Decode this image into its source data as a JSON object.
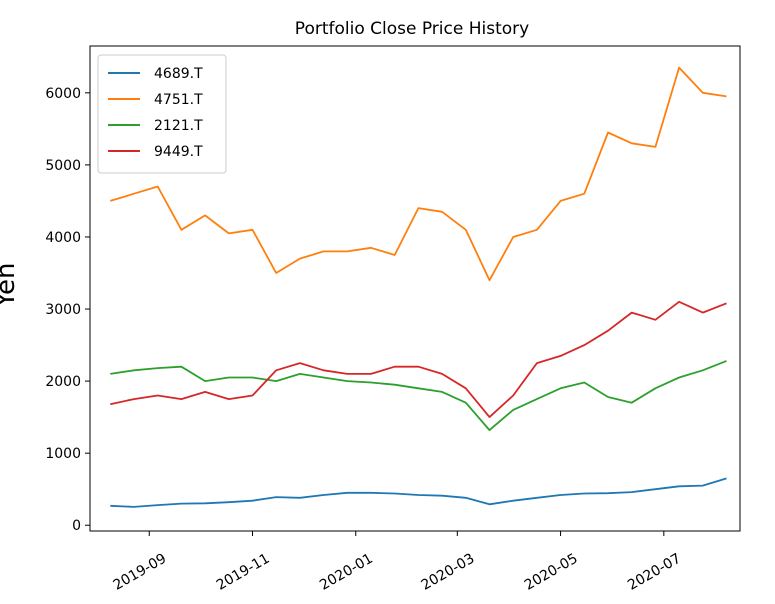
{
  "chart_data": {
    "type": "line",
    "title": "Portfolio Close Price History",
    "xlabel": "",
    "ylabel": "Yen",
    "ylim": [
      -80,
      6650
    ],
    "xlim": [
      "2019-07-28",
      "2020-08-15"
    ],
    "grid": false,
    "legend": "top-left",
    "yticks": [
      0,
      1000,
      2000,
      3000,
      4000,
      5000,
      6000
    ],
    "xticks": [
      "2019-09",
      "2019-11",
      "2020-01",
      "2020-03",
      "2020-05",
      "2020-07"
    ],
    "x": [
      "2019-08-09",
      "2019-08-23",
      "2019-09-06",
      "2019-09-20",
      "2019-10-04",
      "2019-10-18",
      "2019-11-01",
      "2019-11-15",
      "2019-11-29",
      "2019-12-13",
      "2019-12-27",
      "2020-01-10",
      "2020-01-24",
      "2020-02-07",
      "2020-02-21",
      "2020-03-06",
      "2020-03-20",
      "2020-04-03",
      "2020-04-17",
      "2020-05-01",
      "2020-05-15",
      "2020-05-29",
      "2020-06-12",
      "2020-06-26",
      "2020-07-10",
      "2020-07-24",
      "2020-08-07"
    ],
    "series": [
      {
        "name": "4689.T",
        "color": "#1f77b4",
        "values": [
          270,
          255,
          280,
          300,
          305,
          320,
          340,
          390,
          380,
          420,
          450,
          450,
          440,
          420,
          410,
          380,
          290,
          340,
          380,
          420,
          440,
          445,
          460,
          500,
          540,
          550,
          650
        ]
      },
      {
        "name": "4751.T",
        "color": "#ff7f0e",
        "values": [
          4500,
          4600,
          4700,
          4100,
          4300,
          4050,
          4100,
          3500,
          3700,
          3800,
          3800,
          3850,
          3750,
          4400,
          4350,
          4100,
          3400,
          4000,
          4100,
          4500,
          4600,
          5450,
          5300,
          5250,
          6350,
          6000,
          5950
        ]
      },
      {
        "name": "2121.T",
        "color": "#2ca02c",
        "values": [
          2100,
          2150,
          2180,
          2200,
          2000,
          2050,
          2050,
          2000,
          2100,
          2050,
          2000,
          1980,
          1950,
          1900,
          1850,
          1700,
          1320,
          1600,
          1750,
          1900,
          1980,
          1780,
          1700,
          1900,
          2050,
          2150,
          2280
        ]
      },
      {
        "name": "9449.T",
        "color": "#d62728",
        "values": [
          1680,
          1750,
          1800,
          1750,
          1850,
          1750,
          1800,
          2150,
          2250,
          2150,
          2100,
          2100,
          2200,
          2200,
          2100,
          1900,
          1500,
          1800,
          2250,
          2350,
          2500,
          2700,
          2950,
          2850,
          3100,
          2950,
          3080
        ]
      }
    ]
  }
}
